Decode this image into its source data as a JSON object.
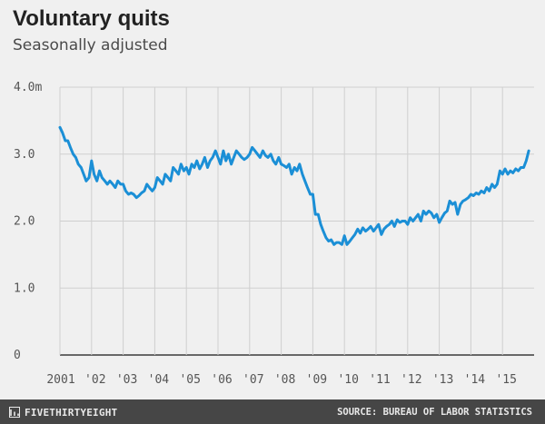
{
  "chart_data": {
    "type": "line",
    "title": "Voluntary quits",
    "subtitle": "Seasonally adjusted",
    "xlabel": "",
    "ylabel": "",
    "ylim": [
      0,
      4.0
    ],
    "xlim": [
      2001.0,
      2016.0
    ],
    "y_ticks": [
      {
        "value": 0,
        "label": "0"
      },
      {
        "value": 1.0,
        "label": "1.0"
      },
      {
        "value": 2.0,
        "label": "2.0"
      },
      {
        "value": 3.0,
        "label": "3.0"
      },
      {
        "value": 4.0,
        "label": "4.0m"
      }
    ],
    "x_ticks": [
      {
        "value": 2001,
        "label": "2001"
      },
      {
        "value": 2002,
        "label": "'02"
      },
      {
        "value": 2003,
        "label": "'03"
      },
      {
        "value": 2004,
        "label": "'04"
      },
      {
        "value": 2005,
        "label": "'05"
      },
      {
        "value": 2006,
        "label": "'06"
      },
      {
        "value": 2007,
        "label": "'07"
      },
      {
        "value": 2008,
        "label": "'08"
      },
      {
        "value": 2009,
        "label": "'09"
      },
      {
        "value": 2010,
        "label": "'10"
      },
      {
        "value": 2011,
        "label": "'11"
      },
      {
        "value": 2012,
        "label": "'12"
      },
      {
        "value": 2013,
        "label": "'13"
      },
      {
        "value": 2014,
        "label": "'14"
      },
      {
        "value": 2015,
        "label": "'15"
      }
    ],
    "grid": true,
    "line_color": "#1b8fd6",
    "series": [
      {
        "name": "",
        "x": [
          2001.0,
          2001.08,
          2001.17,
          2001.25,
          2001.33,
          2001.42,
          2001.5,
          2001.58,
          2001.67,
          2001.75,
          2001.83,
          2001.92,
          2002.0,
          2002.08,
          2002.17,
          2002.25,
          2002.33,
          2002.42,
          2002.5,
          2002.58,
          2002.67,
          2002.75,
          2002.83,
          2002.92,
          2003.0,
          2003.08,
          2003.17,
          2003.25,
          2003.33,
          2003.42,
          2003.5,
          2003.58,
          2003.67,
          2003.75,
          2003.83,
          2003.92,
          2004.0,
          2004.08,
          2004.17,
          2004.25,
          2004.33,
          2004.42,
          2004.5,
          2004.58,
          2004.67,
          2004.75,
          2004.83,
          2004.92,
          2005.0,
          2005.08,
          2005.17,
          2005.25,
          2005.33,
          2005.42,
          2005.5,
          2005.58,
          2005.67,
          2005.75,
          2005.83,
          2005.92,
          2006.0,
          2006.08,
          2006.17,
          2006.25,
          2006.33,
          2006.42,
          2006.5,
          2006.58,
          2006.67,
          2006.75,
          2006.83,
          2006.92,
          2007.0,
          2007.08,
          2007.17,
          2007.25,
          2007.33,
          2007.42,
          2007.5,
          2007.58,
          2007.67,
          2007.75,
          2007.83,
          2007.92,
          2008.0,
          2008.08,
          2008.17,
          2008.25,
          2008.33,
          2008.42,
          2008.5,
          2008.58,
          2008.67,
          2008.75,
          2008.83,
          2008.92,
          2009.0,
          2009.08,
          2009.17,
          2009.25,
          2009.33,
          2009.42,
          2009.5,
          2009.58,
          2009.67,
          2009.75,
          2009.83,
          2009.92,
          2010.0,
          2010.08,
          2010.17,
          2010.25,
          2010.33,
          2010.42,
          2010.5,
          2010.58,
          2010.67,
          2010.75,
          2010.83,
          2010.92,
          2011.0,
          2011.08,
          2011.17,
          2011.25,
          2011.33,
          2011.42,
          2011.5,
          2011.58,
          2011.67,
          2011.75,
          2011.83,
          2011.92,
          2012.0,
          2012.08,
          2012.17,
          2012.25,
          2012.33,
          2012.42,
          2012.5,
          2012.58,
          2012.67,
          2012.75,
          2012.83,
          2012.92,
          2013.0,
          2013.08,
          2013.17,
          2013.25,
          2013.33,
          2013.42,
          2013.5,
          2013.58,
          2013.67,
          2013.75,
          2013.83,
          2013.92,
          2014.0,
          2014.08,
          2014.17,
          2014.25,
          2014.33,
          2014.42,
          2014.5,
          2014.58,
          2014.67,
          2014.75,
          2014.83,
          2014.92,
          2015.0,
          2015.08,
          2015.17,
          2015.25,
          2015.33,
          2015.42,
          2015.5,
          2015.58,
          2015.67,
          2015.75,
          2015.83
        ],
        "values": [
          3.4,
          3.32,
          3.2,
          3.2,
          3.1,
          3.0,
          2.95,
          2.85,
          2.8,
          2.7,
          2.6,
          2.65,
          2.9,
          2.7,
          2.6,
          2.75,
          2.65,
          2.6,
          2.55,
          2.6,
          2.55,
          2.5,
          2.6,
          2.55,
          2.55,
          2.45,
          2.4,
          2.42,
          2.4,
          2.35,
          2.38,
          2.42,
          2.45,
          2.55,
          2.5,
          2.45,
          2.5,
          2.65,
          2.6,
          2.55,
          2.7,
          2.65,
          2.6,
          2.8,
          2.75,
          2.7,
          2.85,
          2.75,
          2.8,
          2.7,
          2.85,
          2.8,
          2.9,
          2.78,
          2.85,
          2.95,
          2.8,
          2.9,
          2.95,
          3.05,
          2.95,
          2.85,
          3.05,
          2.9,
          3.0,
          2.85,
          2.95,
          3.05,
          3.0,
          2.95,
          2.92,
          2.95,
          3.0,
          3.1,
          3.05,
          3.0,
          2.95,
          3.05,
          2.98,
          2.95,
          3.0,
          2.9,
          2.85,
          2.95,
          2.85,
          2.83,
          2.8,
          2.85,
          2.7,
          2.8,
          2.75,
          2.85,
          2.7,
          2.6,
          2.5,
          2.4,
          2.4,
          2.1,
          2.1,
          1.95,
          1.85,
          1.75,
          1.7,
          1.72,
          1.65,
          1.68,
          1.68,
          1.65,
          1.78,
          1.65,
          1.7,
          1.75,
          1.8,
          1.88,
          1.82,
          1.9,
          1.85,
          1.88,
          1.92,
          1.85,
          1.9,
          1.95,
          1.8,
          1.88,
          1.92,
          1.95,
          2.0,
          1.92,
          2.02,
          1.98,
          2.0,
          2.0,
          1.95,
          2.05,
          2.0,
          2.05,
          2.1,
          2.0,
          2.15,
          2.1,
          2.15,
          2.12,
          2.05,
          2.1,
          1.98,
          2.05,
          2.12,
          2.15,
          2.3,
          2.25,
          2.28,
          2.1,
          2.25,
          2.3,
          2.32,
          2.35,
          2.4,
          2.38,
          2.42,
          2.4,
          2.45,
          2.42,
          2.5,
          2.45,
          2.55,
          2.5,
          2.55,
          2.75,
          2.7,
          2.78,
          2.7,
          2.75,
          2.72,
          2.78,
          2.75,
          2.8,
          2.8,
          2.9,
          3.05
        ]
      }
    ]
  },
  "footer": {
    "brand": "FIVETHIRTYEIGHT",
    "brand_icon": "fivethirtyeight-logo-icon",
    "source": "SOURCE: BUREAU OF LABOR STATISTICS"
  }
}
